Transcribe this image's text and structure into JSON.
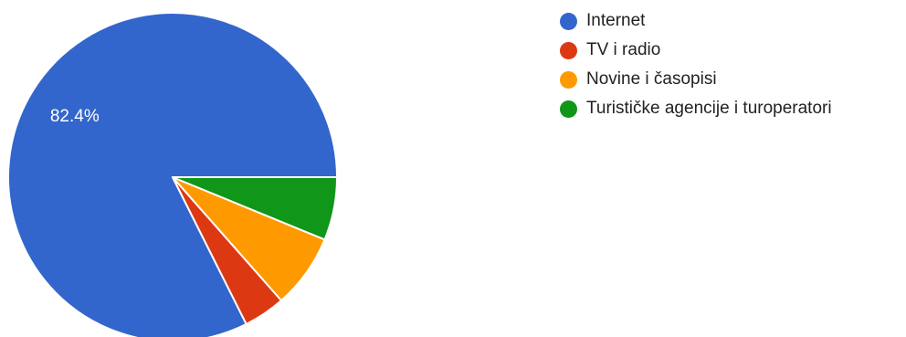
{
  "chart_data": {
    "type": "pie",
    "categories": [
      "Internet",
      "TV i radio",
      "Novine i časopisi",
      "Turističke agencije i turoperatori"
    ],
    "values": [
      82.4,
      4.1,
      7.3,
      6.2
    ],
    "data_labels": [
      "82.4%",
      "",
      "",
      ""
    ],
    "colors": [
      "#3366cc",
      "#dc3912",
      "#ff9900",
      "#109618"
    ],
    "legend_position": "right"
  }
}
